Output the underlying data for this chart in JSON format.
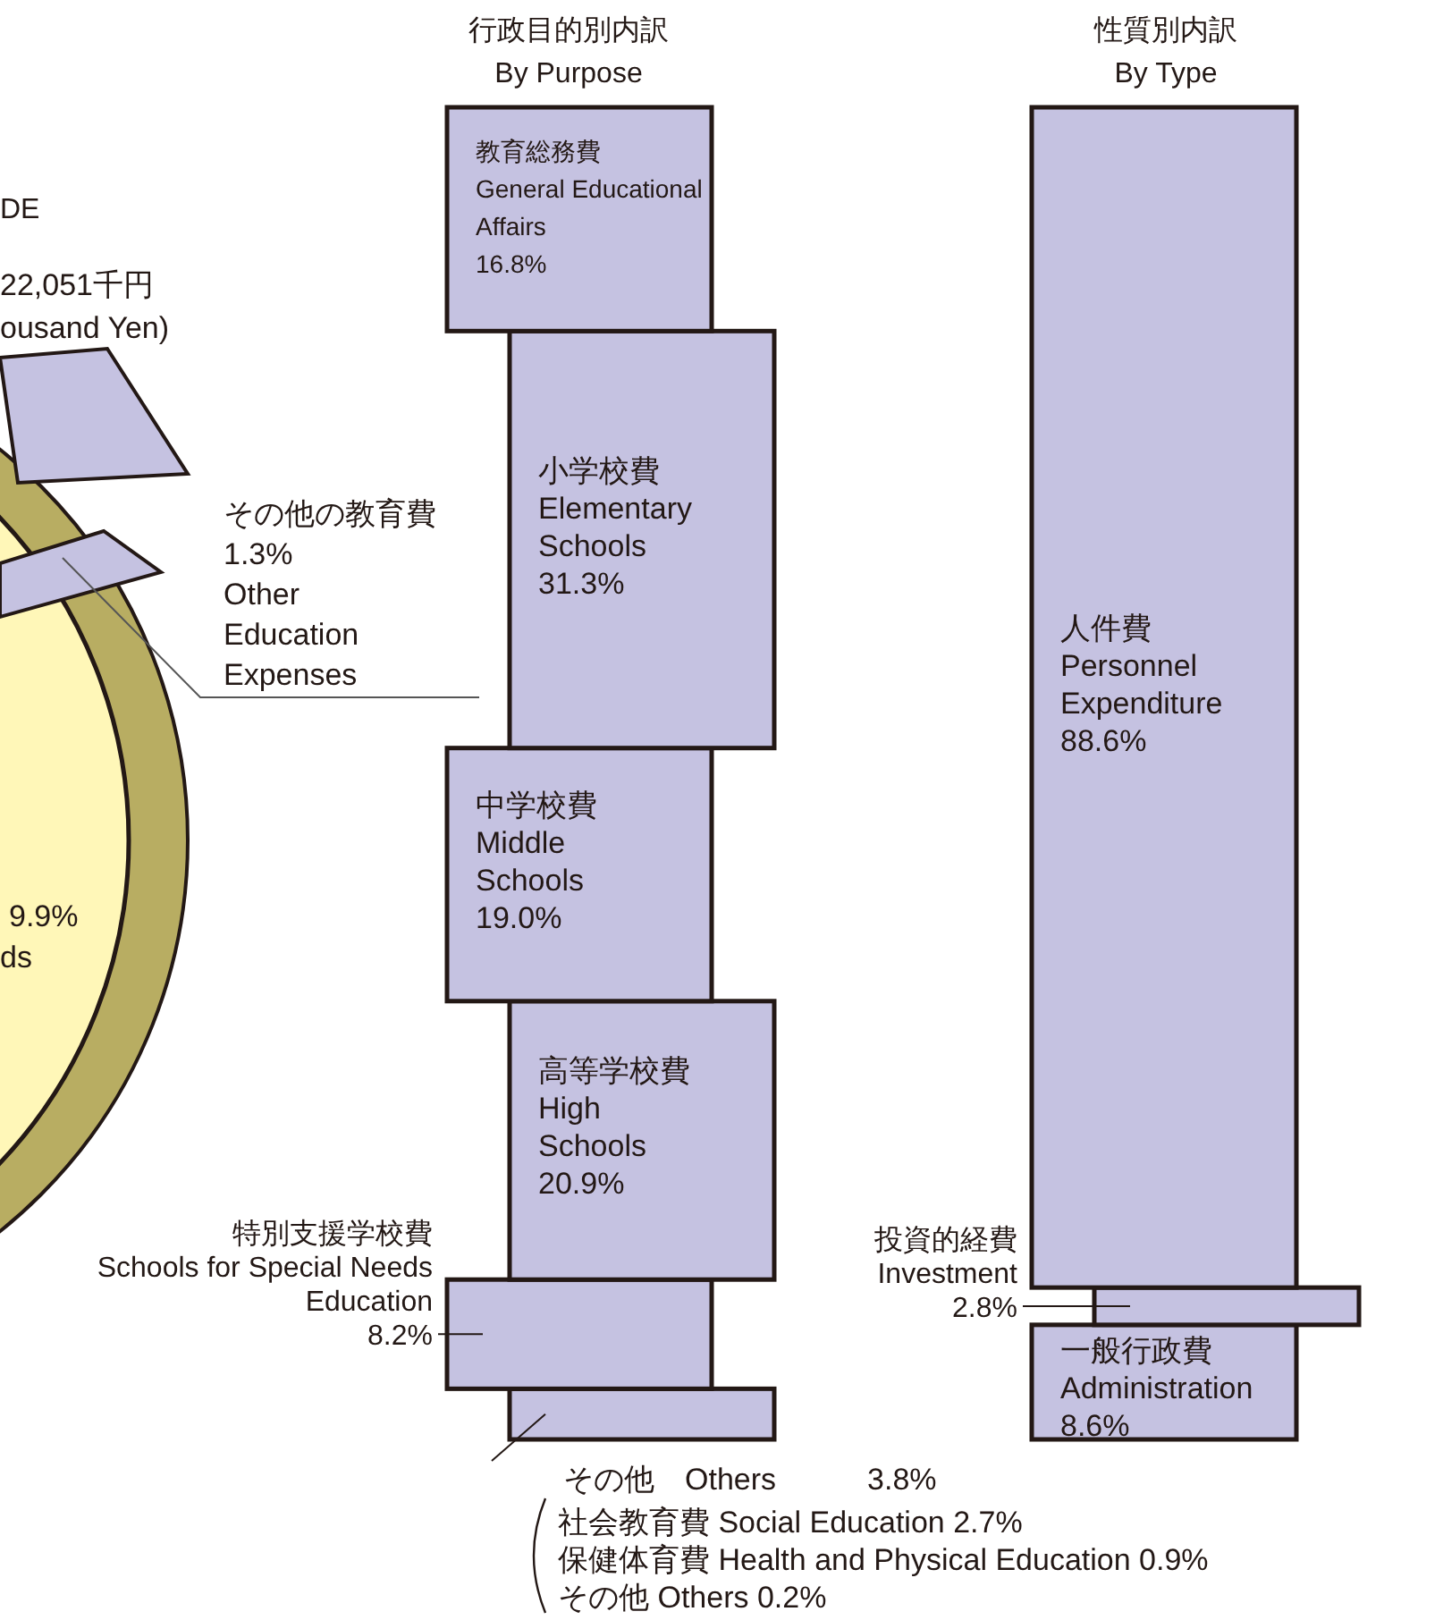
{
  "chart_data": [
    {
      "type": "other",
      "annotations": [
        "DE",
        "22,051千円",
        "ousand Yen)",
        "9.9%",
        "ds",
        "その他の教育費\n1.3%\nOther\nEducation\nExpenses"
      ]
    },
    {
      "type": "bar",
      "stacked": true,
      "title": "行政目的別内訳",
      "subtitle": "By   Purpose",
      "categories": [
        null
      ],
      "series": [
        {
          "name": "その他　Others",
          "color": "#c5c2e1",
          "values": [
            3.8
          ],
          "value_labels": [
            "3.8%"
          ]
        },
        {
          "name": "特別支援学校費\nSchools for Special Needs\nEducation",
          "color": "#c5c2e1",
          "values": [
            8.2
          ],
          "value_labels": [
            "8.2%"
          ]
        },
        {
          "name": "高等学校費\nHigh\nSchools",
          "color": "#c5c2e1",
          "values": [
            20.9
          ],
          "value_labels": [
            "20.9%"
          ]
        },
        {
          "name": "中学校費\nMiddle\nSchools",
          "color": "#c5c2e1",
          "values": [
            19.0
          ],
          "value_labels": [
            "19.0%"
          ]
        },
        {
          "name": "小学校費\nElementary\nSchools",
          "color": "#c5c2e1",
          "values": [
            31.3
          ],
          "value_labels": [
            "31.3%"
          ]
        },
        {
          "name": "教育総務費\nGeneral Educational\nAffairs",
          "color": "#c5c2e1",
          "values": [
            16.8
          ],
          "value_labels": [
            "16.8%"
          ]
        }
      ],
      "annotations": [
        "社会教育費 Social Education 2.7%",
        "保健体育費 Health and Physical Education 0.9%",
        "その他 Others 0.2%"
      ]
    },
    {
      "type": "bar",
      "stacked": true,
      "title": "性質別内訳",
      "subtitle": "By Type",
      "categories": [
        null
      ],
      "series": [
        {
          "name": "一般行政費\nAdministration",
          "color": "#c5c2e1",
          "values": [
            8.6
          ],
          "value_labels": [
            "8.6%"
          ]
        },
        {
          "name": "投資的経費\nInvestment",
          "color": "#c5c2e1",
          "values": [
            2.8
          ],
          "value_labels": [
            "2.8%"
          ]
        },
        {
          "name": "人件費\nPersonnel\nExpenditure",
          "color": "#c5c2e1",
          "values": [
            88.6
          ],
          "value_labels": [
            "88.6%"
          ]
        }
      ]
    }
  ]
}
